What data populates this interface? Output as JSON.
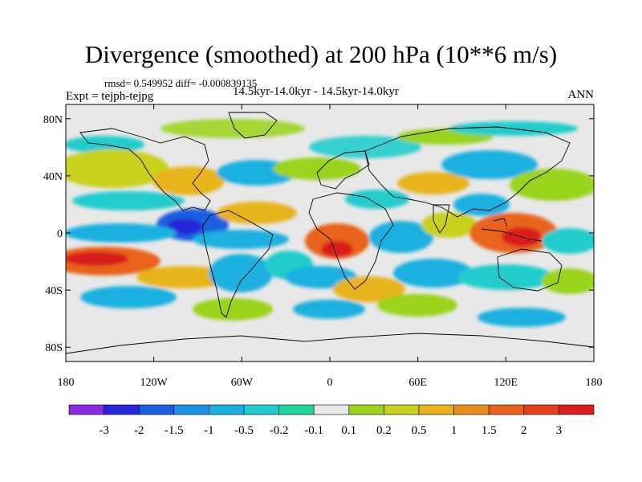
{
  "title": "Divergence (smoothed) at 200 hPa (10**6 m/s)",
  "stats": "rmsd= 0.549952 diff= -0.000839135",
  "experiment": "Expt = tejph-tejpg",
  "period": "14.5kyr-14.0kyr - 14.5kyr-14.0kyr",
  "season": "ANN",
  "axes": {
    "lat_ticks": [
      "80N",
      "40N",
      "0",
      "40S",
      "80S"
    ],
    "lon_ticks": [
      "180",
      "120W",
      "60W",
      "0",
      "60E",
      "120E",
      "180"
    ]
  },
  "colorbar": {
    "labels": [
      "-3",
      "-2",
      "-1.5",
      "-1",
      "-0.5",
      "-0.2",
      "-0.1",
      "0.1",
      "0.2",
      "0.5",
      "1",
      "1.5",
      "2",
      "3"
    ],
    "colors": [
      "#8a2be2",
      "#2828d8",
      "#1e5fe0",
      "#1e90e8",
      "#1ab0e0",
      "#22cccc",
      "#22d3a0",
      "#e8e8e8",
      "#9ad31a",
      "#c8d21e",
      "#e8b41e",
      "#e88c1e",
      "#e8641e",
      "#e0401e",
      "#d81e1e"
    ]
  },
  "map_colors": {
    "ocean_background": "#e8e8e8",
    "neg_weak": "#22cccc",
    "neg_mid": "#1ab0e0",
    "neg_strong": "#1e5fe0",
    "neg_extreme": "#2828d8",
    "pos_weak": "#9ad31a",
    "pos_mid": "#e8b41e",
    "pos_strong": "#e8641e",
    "pos_extreme": "#d81e1e"
  }
}
